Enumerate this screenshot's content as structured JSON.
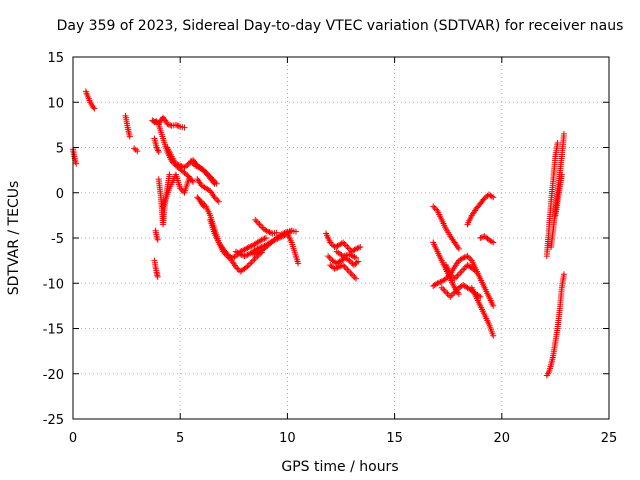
{
  "chart_data": {
    "type": "scatter",
    "title": "Day 359 of 2023, Sidereal Day-to-day VTEC variation (SDTVAR) for receiver naus",
    "xlabel": "GPS time / hours",
    "ylabel": "SDTVAR / TECUs",
    "xlim": [
      0,
      25
    ],
    "ylim": [
      -25,
      15
    ],
    "xticks": [
      0,
      5,
      10,
      15,
      20,
      25
    ],
    "yticks": [
      -25,
      -20,
      -15,
      -10,
      -5,
      0,
      5,
      10,
      15
    ],
    "grid": true,
    "marker": "+",
    "color": "#ff0000",
    "segments": [
      {
        "name": "arc-1",
        "x": [
          0.0,
          0.05,
          0.1,
          0.15
        ],
        "y": [
          4.8,
          4.2,
          3.6,
          3.2
        ]
      },
      {
        "name": "arc-2",
        "x": [
          0.6,
          0.7,
          0.8,
          0.9,
          1.0
        ],
        "y": [
          11.2,
          10.6,
          10.0,
          9.6,
          9.3
        ]
      },
      {
        "name": "arc-3",
        "x": [
          2.45,
          2.55,
          2.65
        ],
        "y": [
          8.5,
          7.2,
          6.2
        ]
      },
      {
        "name": "arc-4",
        "x": [
          2.85,
          3.0
        ],
        "y": [
          4.9,
          4.6
        ]
      },
      {
        "name": "arc-5",
        "x": [
          3.7,
          3.8,
          3.9,
          4.0,
          4.1,
          4.2,
          4.3,
          4.4,
          4.6,
          4.8,
          5.0,
          5.2
        ],
        "y": [
          8.0,
          7.8,
          7.9,
          7.6,
          8.0,
          8.3,
          8.0,
          7.6,
          7.4,
          7.5,
          7.3,
          7.2
        ]
      },
      {
        "name": "arc-6",
        "x": [
          3.8,
          3.85,
          3.9,
          3.95
        ],
        "y": [
          -7.5,
          -8.2,
          -8.8,
          -9.3
        ]
      },
      {
        "name": "arc-7",
        "x": [
          3.8,
          3.9,
          4.0
        ],
        "y": [
          6.0,
          5.0,
          4.5
        ]
      },
      {
        "name": "arc-8",
        "x": [
          3.85,
          3.9,
          3.95
        ],
        "y": [
          -4.2,
          -4.8,
          -5.2
        ]
      },
      {
        "name": "arc-9",
        "x": [
          4.0,
          4.1,
          4.15,
          4.2,
          4.3,
          4.4,
          4.5
        ],
        "y": [
          1.5,
          -0.5,
          -2.0,
          -3.5,
          -1.0,
          0.5,
          2.0
        ]
      },
      {
        "name": "arc-10",
        "x": [
          4.0,
          4.2,
          4.4,
          4.6,
          4.8,
          5.0,
          5.2,
          5.4,
          5.6
        ],
        "y": [
          7.5,
          6.0,
          4.5,
          3.5,
          3.0,
          2.6,
          2.2,
          1.8,
          1.2
        ]
      },
      {
        "name": "arc-11",
        "x": [
          4.4,
          4.6,
          4.8,
          5.0,
          5.2,
          5.4,
          5.6,
          5.8,
          6.0,
          6.2,
          6.4,
          6.6
        ],
        "y": [
          5.0,
          4.0,
          3.2,
          3.0,
          2.8,
          3.2,
          3.6,
          3.0,
          2.6,
          2.2,
          1.6,
          1.0
        ]
      },
      {
        "name": "arc-12",
        "x": [
          4.2,
          4.5,
          4.8,
          5.0,
          5.2,
          5.4
        ],
        "y": [
          -1.5,
          0.5,
          2.0,
          0.5,
          0.0,
          1.5
        ]
      },
      {
        "name": "arc-13",
        "x": [
          5.5,
          5.7,
          5.9,
          6.1,
          6.3,
          6.5,
          6.7
        ],
        "y": [
          3.5,
          3.0,
          2.8,
          2.5,
          2.0,
          1.5,
          1.0
        ]
      },
      {
        "name": "arc-14",
        "x": [
          5.8,
          6.0,
          6.2,
          6.4,
          6.6,
          6.8
        ],
        "y": [
          1.5,
          0.8,
          0.5,
          0.2,
          -0.5,
          -1.0
        ]
      },
      {
        "name": "arc-15",
        "x": [
          5.8,
          5.9,
          6.0,
          6.1
        ],
        "y": [
          -0.5,
          -0.8,
          -1.2,
          -1.5
        ]
      },
      {
        "name": "arc-16",
        "x": [
          6.0,
          6.2,
          6.4,
          6.6,
          6.8,
          7.0,
          7.2,
          7.4,
          7.6,
          7.8,
          8.0,
          8.2,
          8.4,
          8.6,
          8.8,
          9.0
        ],
        "y": [
          -1.0,
          -1.5,
          -2.5,
          -4.0,
          -5.5,
          -6.2,
          -6.8,
          -7.2,
          -7.0,
          -6.5,
          -6.3,
          -6.0,
          -5.8,
          -5.5,
          -5.2,
          -5.0
        ]
      },
      {
        "name": "arc-17",
        "x": [
          6.4,
          6.6,
          6.8,
          7.0,
          7.2,
          7.4,
          7.6,
          7.8,
          8.0,
          8.2,
          8.4,
          8.6,
          8.8
        ],
        "y": [
          -3.0,
          -4.5,
          -5.5,
          -6.5,
          -7.0,
          -7.5,
          -8.2,
          -8.7,
          -8.4,
          -8.0,
          -7.5,
          -7.0,
          -6.6
        ]
      },
      {
        "name": "arc-18",
        "x": [
          7.6,
          7.8,
          8.0,
          8.2,
          8.4,
          8.6,
          8.8,
          9.0,
          9.2,
          9.4,
          9.6,
          9.8,
          10.0,
          10.2
        ],
        "y": [
          -6.5,
          -6.8,
          -7.0,
          -6.8,
          -6.5,
          -6.2,
          -6.0,
          -5.8,
          -5.5,
          -5.2,
          -5.0,
          -4.8,
          -4.5,
          -4.2
        ]
      },
      {
        "name": "arc-19",
        "x": [
          8.4,
          8.6,
          8.8,
          9.0,
          9.2,
          9.4,
          9.6,
          9.8,
          10.0,
          10.2,
          10.4
        ],
        "y": [
          -6.8,
          -6.6,
          -6.4,
          -6.0,
          -5.6,
          -5.2,
          -4.8,
          -4.5,
          -4.3,
          -4.2,
          -4.3
        ]
      },
      {
        "name": "arc-20",
        "x": [
          8.5,
          8.7,
          8.9,
          9.1,
          9.3,
          9.5
        ],
        "y": [
          -3.0,
          -3.5,
          -4.0,
          -4.3,
          -4.5,
          -4.4
        ]
      },
      {
        "name": "arc-21",
        "x": [
          10.0,
          10.2,
          10.4,
          10.5
        ],
        "y": [
          -4.5,
          -5.5,
          -7.0,
          -7.8
        ]
      },
      {
        "name": "arc-22",
        "x": [
          11.8,
          12.0,
          12.2,
          12.4,
          12.6,
          12.8,
          13.0,
          13.2,
          13.4
        ],
        "y": [
          -4.5,
          -5.5,
          -6.0,
          -5.8,
          -5.5,
          -6.0,
          -6.5,
          -6.2,
          -6.0
        ]
      },
      {
        "name": "arc-23",
        "x": [
          11.9,
          12.1,
          12.3,
          12.5,
          12.7,
          12.9,
          13.1,
          13.3
        ],
        "y": [
          -7.0,
          -7.5,
          -7.8,
          -7.5,
          -7.2,
          -7.5,
          -8.0,
          -7.6
        ]
      },
      {
        "name": "arc-24",
        "x": [
          12.0,
          12.2,
          12.4,
          12.6,
          12.8,
          13.0,
          13.2
        ],
        "y": [
          -8.0,
          -8.4,
          -8.2,
          -8.0,
          -8.5,
          -9.0,
          -9.5
        ]
      },
      {
        "name": "arc-25",
        "x": [
          12.3,
          12.6,
          12.9,
          13.2
        ],
        "y": [
          -6.5,
          -7.0,
          -6.8,
          -7.2
        ]
      },
      {
        "name": "arc-26",
        "x": [
          16.8,
          17.0,
          17.2,
          17.4,
          17.6,
          17.8,
          18.0
        ],
        "y": [
          -1.5,
          -2.0,
          -3.0,
          -4.0,
          -4.8,
          -5.5,
          -6.2
        ]
      },
      {
        "name": "arc-27",
        "x": [
          16.8,
          17.0,
          17.2,
          17.4,
          17.6,
          17.8,
          18.0
        ],
        "y": [
          -5.5,
          -6.5,
          -7.5,
          -8.5,
          -9.5,
          -10.5,
          -11.2
        ]
      },
      {
        "name": "arc-28",
        "x": [
          16.8,
          17.0,
          17.2,
          17.4,
          17.6,
          17.8,
          18.0,
          18.2,
          18.4,
          18.6,
          18.8,
          19.0,
          19.2,
          19.4,
          19.6
        ],
        "y": [
          -10.3,
          -10.0,
          -9.8,
          -9.5,
          -9.0,
          -8.2,
          -7.5,
          -7.2,
          -7.0,
          -7.5,
          -8.5,
          -9.5,
          -10.5,
          -11.5,
          -12.5
        ]
      },
      {
        "name": "arc-29",
        "x": [
          17.2,
          17.4,
          17.6,
          17.8,
          18.0,
          18.2,
          18.4,
          18.6,
          18.8,
          19.0
        ],
        "y": [
          -10.5,
          -11.0,
          -11.5,
          -11.0,
          -10.5,
          -10.2,
          -10.5,
          -10.8,
          -11.2,
          -11.5
        ]
      },
      {
        "name": "arc-30",
        "x": [
          17.4,
          17.6,
          17.8,
          18.0,
          18.2,
          18.4,
          18.6,
          18.8
        ],
        "y": [
          -8.0,
          -9.0,
          -9.5,
          -9.0,
          -8.5,
          -8.0,
          -8.3,
          -8.7
        ]
      },
      {
        "name": "arc-31",
        "x": [
          18.6,
          18.8,
          19.0,
          19.2,
          19.4,
          19.6
        ],
        "y": [
          -10.5,
          -11.5,
          -12.5,
          -13.5,
          -14.5,
          -15.8
        ]
      },
      {
        "name": "arc-32",
        "x": [
          18.4,
          18.6,
          18.8,
          19.0,
          19.2,
          19.4,
          19.6
        ],
        "y": [
          -3.5,
          -2.5,
          -1.8,
          -1.2,
          -0.6,
          -0.2,
          -0.5
        ]
      },
      {
        "name": "arc-33",
        "x": [
          19.0,
          19.2,
          19.4,
          19.6
        ],
        "y": [
          -5.0,
          -4.8,
          -5.2,
          -5.5
        ]
      },
      {
        "name": "arc-34",
        "x": [
          22.1,
          22.2,
          22.3,
          22.4,
          22.5,
          22.6
        ],
        "y": [
          -7.0,
          -4.0,
          -1.0,
          1.5,
          4.0,
          5.5
        ]
      },
      {
        "name": "arc-35",
        "x": [
          22.3,
          22.4,
          22.5,
          22.6,
          22.7,
          22.8,
          22.9
        ],
        "y": [
          -6.0,
          -4.0,
          -2.0,
          0.0,
          2.0,
          4.0,
          6.5
        ]
      },
      {
        "name": "arc-36",
        "x": [
          22.5,
          22.6,
          22.7,
          22.8
        ],
        "y": [
          -2.5,
          -1.0,
          0.5,
          2.0
        ]
      },
      {
        "name": "arc-37",
        "x": [
          22.1,
          22.2,
          22.3,
          22.4,
          22.5,
          22.6,
          22.7,
          22.8,
          22.9
        ],
        "y": [
          -20.2,
          -19.8,
          -19.0,
          -18.0,
          -16.5,
          -15.0,
          -13.0,
          -10.5,
          -9.0
        ]
      }
    ]
  }
}
